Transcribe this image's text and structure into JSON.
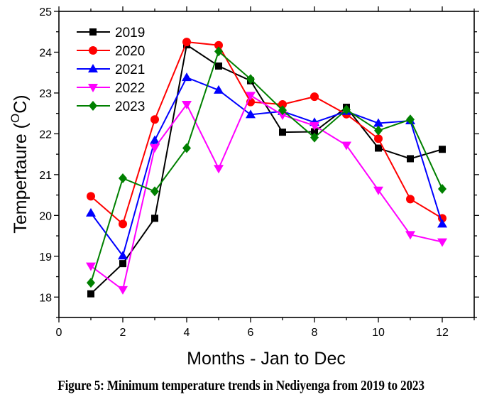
{
  "chart_data": {
    "type": "line",
    "title": "",
    "xlabel": "Months - Jan to Dec",
    "ylabel": "Tempertaure (",
    "ylabel_sup": "O",
    "ylabel_tail": "C)",
    "x": [
      1,
      2,
      3,
      4,
      5,
      6,
      7,
      8,
      9,
      10,
      11,
      12
    ],
    "xlim": [
      0,
      13
    ],
    "ylim": [
      17.5,
      25
    ],
    "xticks": [
      "0",
      "2",
      "4",
      "6",
      "8",
      "10",
      "12"
    ],
    "xtick_values": [
      0,
      2,
      4,
      6,
      8,
      10,
      12
    ],
    "yticks": [
      "18",
      "19",
      "20",
      "21",
      "22",
      "23",
      "24",
      "25"
    ],
    "ytick_values": [
      18,
      19,
      20,
      21,
      22,
      23,
      24,
      25
    ],
    "grid": false,
    "legend_position": "top-left",
    "series": [
      {
        "name": "2019",
        "color": "#000000",
        "marker": "square",
        "values": [
          18.08,
          18.82,
          19.93,
          24.18,
          23.66,
          23.3,
          22.04,
          22.05,
          22.65,
          21.65,
          21.39,
          21.62
        ]
      },
      {
        "name": "2020",
        "color": "#ff0000",
        "marker": "circle",
        "values": [
          20.47,
          19.79,
          22.35,
          24.25,
          24.17,
          22.78,
          22.72,
          22.91,
          22.48,
          21.88,
          20.4,
          19.93
        ]
      },
      {
        "name": "2021",
        "color": "#0000ff",
        "marker": "triangle-up",
        "values": [
          20.06,
          19.01,
          21.84,
          23.38,
          23.07,
          22.47,
          22.55,
          22.28,
          22.55,
          22.26,
          22.32,
          19.79
        ]
      },
      {
        "name": "2022",
        "color": "#ff00ff",
        "marker": "triangle-down",
        "values": [
          18.76,
          18.18,
          21.66,
          22.72,
          21.15,
          22.94,
          22.46,
          22.2,
          21.72,
          20.62,
          19.53,
          19.35
        ]
      },
      {
        "name": "2023",
        "color": "#008000",
        "marker": "diamond",
        "values": [
          18.35,
          20.91,
          20.59,
          21.65,
          24.02,
          23.34,
          22.58,
          21.91,
          22.59,
          22.08,
          22.35,
          20.65
        ]
      }
    ]
  },
  "caption": "Figure 5: Minimum temperature trends in Nediyenga from 2019 to 2023"
}
